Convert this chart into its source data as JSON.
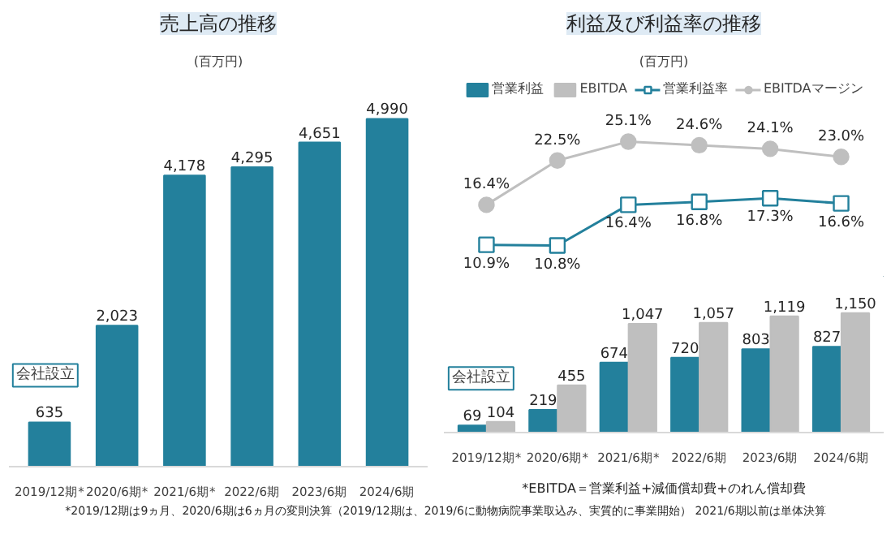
{
  "chart_data": [
    {
      "type": "bar",
      "title": "売上高の推移",
      "subtitle": "(百万円)",
      "categories": [
        "2019/12期*",
        "2020/6期*",
        "2021/6期*",
        "2022/6期",
        "2023/6期",
        "2024/6期"
      ],
      "series": [
        {
          "color": "#23809c",
          "values": [
            635,
            2023,
            4178,
            4295,
            4651,
            4990
          ],
          "value_labels": [
            "635",
            "2,023",
            "4,178",
            "4,295",
            "4,651",
            "4,990"
          ]
        }
      ],
      "annotations": [
        "会社設立"
      ],
      "grid": false
    },
    {
      "type": "line",
      "title": "利益及び利益率の推移",
      "subtitle": "(百万円)",
      "categories": [
        null,
        null,
        null,
        null,
        null,
        null
      ],
      "series": [
        {
          "name": "営業利益率",
          "marker": "square",
          "color": "#23809c",
          "values": [
            10.9,
            10.8,
            16.4,
            16.8,
            17.3,
            16.6
          ],
          "value_labels": [
            "10.9%",
            "10.8%",
            "16.4%",
            "16.8%",
            "17.3%",
            "16.6%"
          ]
        },
        {
          "name": "EBITDAマージン",
          "marker": "circle",
          "color": "#bfbfbf",
          "values": [
            16.4,
            22.5,
            25.1,
            24.6,
            24.1,
            23.0
          ],
          "value_labels": [
            "16.4%",
            "22.5%",
            "25.1%",
            "24.6%",
            "24.1%",
            "23.0%"
          ]
        }
      ],
      "tick_labels": false,
      "grid": false,
      "legend": "top"
    },
    {
      "type": "bar",
      "categories": [
        "2019/12期*",
        "2020/6期*",
        "2021/6期*",
        "2022/6期",
        "2023/6期",
        "2024/6期"
      ],
      "series": [
        {
          "name": "営業利益",
          "color": "#23809c",
          "values": [
            69,
            219,
            674,
            720,
            803,
            827
          ],
          "value_labels": [
            "69",
            "219",
            "674",
            "720",
            "803",
            "827"
          ]
        },
        {
          "name": "EBITDA",
          "color": "#bfbfbf",
          "values": [
            104,
            455,
            1047,
            1057,
            1119,
            1150
          ],
          "value_labels": [
            "104",
            "455",
            "1,047",
            "1,057",
            "1,119",
            "1,150"
          ]
        }
      ],
      "annotations": [
        "会社設立",
        "*EBITDA＝営業利益+減価償却費+のれん償却費",
        "*2019/12期は9ヵ月、2020/6期は6ヵ月の変則決算（2019/12期は、2019/6に動物病院事業取込み、実質的に事業開始） 2021/6期以前は単体決算"
      ],
      "grid": false,
      "legend": "top"
    }
  ]
}
